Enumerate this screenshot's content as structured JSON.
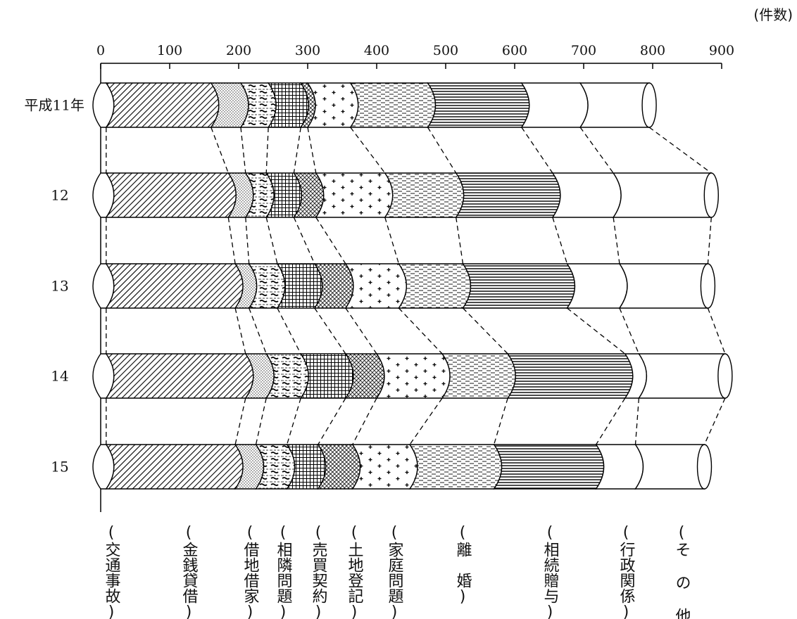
{
  "chart_data": {
    "type": "bar",
    "orientation": "horizontal",
    "stacked": true,
    "unit_label": "(件数)",
    "x_ticks": [
      "0",
      "100",
      "200",
      "300",
      "400",
      "500",
      "600",
      "700",
      "800",
      "900"
    ],
    "xlim": [
      0,
      900
    ],
    "years": [
      "平成11年",
      "12",
      "13",
      "14",
      "15"
    ],
    "categories": [
      "交通事故",
      "金銭貸借",
      "借地借家",
      "相隣問題",
      "売買契約",
      "土地登記",
      "家庭問題",
      "離婚",
      "相続贈与",
      "行政関係",
      "その他"
    ],
    "category_labels": [
      "(交通事故)",
      "(金銭貸借)",
      "(借地借家)",
      "(相隣問題)",
      "(売買契約)",
      "(土地登記)",
      "(家庭問題)",
      "(離　婚)",
      "(相続贈与)",
      "(行政関係)",
      "(そ の 他)"
    ],
    "cumulative_ends": [
      [
        8,
        160,
        203,
        243,
        290,
        300,
        362,
        474,
        610,
        695,
        795
      ],
      [
        8,
        185,
        210,
        240,
        280,
        312,
        412,
        515,
        655,
        743,
        885
      ],
      [
        8,
        195,
        215,
        256,
        310,
        355,
        432,
        525,
        676,
        752,
        880
      ],
      [
        8,
        210,
        240,
        290,
        355,
        400,
        495,
        590,
        760,
        780,
        905
      ],
      [
        8,
        195,
        225,
        270,
        315,
        365,
        448,
        570,
        718,
        775,
        875
      ]
    ],
    "values": [
      [
        8,
        152,
        43,
        40,
        47,
        10,
        62,
        112,
        136,
        85,
        100
      ],
      [
        8,
        177,
        25,
        30,
        40,
        32,
        100,
        103,
        140,
        88,
        142
      ],
      [
        8,
        187,
        20,
        41,
        54,
        45,
        77,
        93,
        151,
        76,
        128
      ],
      [
        8,
        202,
        30,
        50,
        65,
        45,
        95,
        95,
        170,
        20,
        125
      ],
      [
        8,
        187,
        30,
        45,
        45,
        50,
        83,
        122,
        148,
        57,
        100
      ]
    ],
    "patterns": [
      "blank",
      "diagonal-hatch",
      "fine-dots",
      "waves",
      "grid",
      "crosshatch",
      "plus-dots",
      "dashes",
      "horizontal-lines",
      "blank",
      "blank"
    ]
  }
}
